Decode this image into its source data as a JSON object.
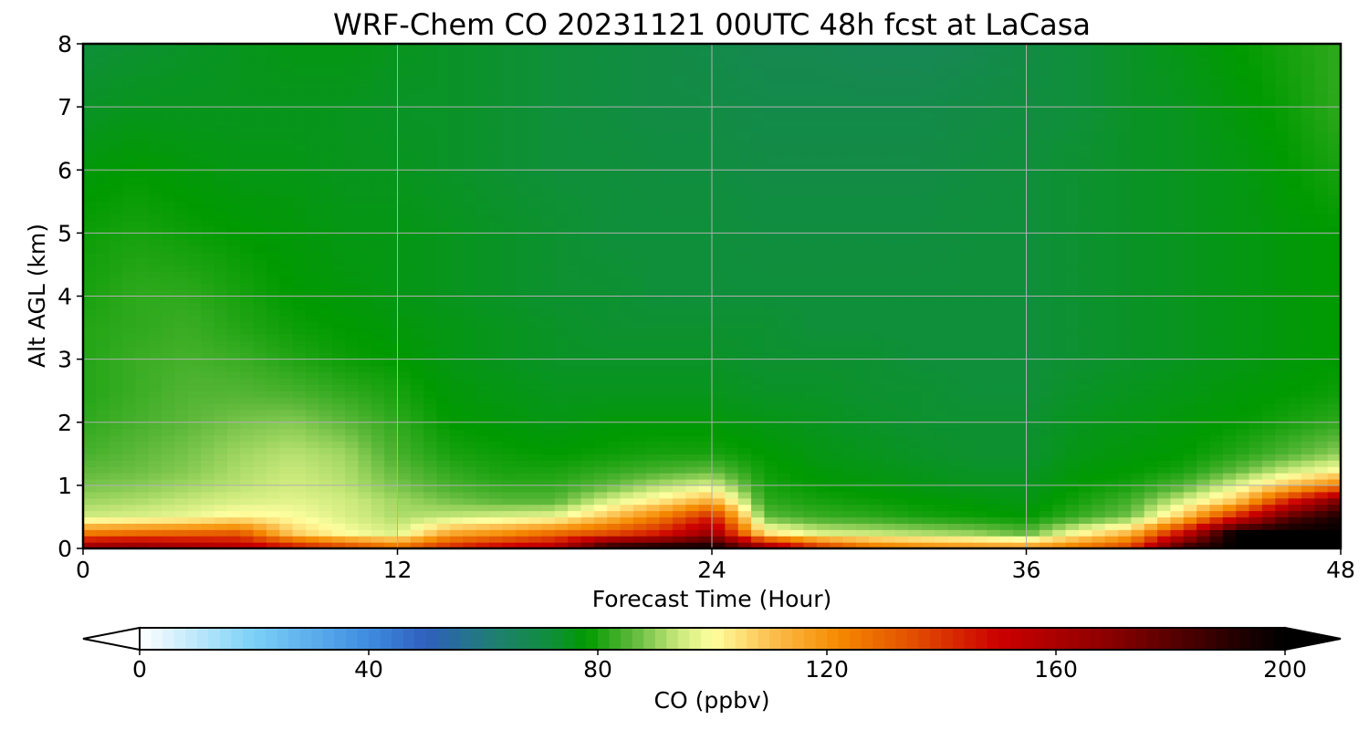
{
  "chart_data": {
    "type": "heatmap",
    "title": "WRF-Chem CO  20231121 00UTC 48h fcst at LaCasa",
    "xlabel": "Forecast Time (Hour)",
    "ylabel": "Alt AGL (km)",
    "xlim": [
      0,
      48
    ],
    "ylim": [
      0,
      8
    ],
    "xticks": [
      "0",
      "12",
      "24",
      "36",
      "48"
    ],
    "yticks": [
      "0",
      "1",
      "2",
      "3",
      "4",
      "5",
      "6",
      "7",
      "8"
    ],
    "grid": true,
    "colorbar": {
      "label": "CO  (ppbv)",
      "range": [
        0,
        200
      ],
      "ticks": [
        "0",
        "40",
        "80",
        "120",
        "160",
        "200"
      ],
      "extend": "both",
      "colors": [
        {
          "v": 0,
          "c": "#ffffff"
        },
        {
          "v": 20,
          "c": "#7ad0f7"
        },
        {
          "v": 40,
          "c": "#3e8ce0"
        },
        {
          "v": 50,
          "c": "#2f5fbe"
        },
        {
          "v": 62,
          "c": "#1f7f70"
        },
        {
          "v": 72,
          "c": "#0f8f3a"
        },
        {
          "v": 78,
          "c": "#009a00"
        },
        {
          "v": 86,
          "c": "#5db83a"
        },
        {
          "v": 94,
          "c": "#c8e87a"
        },
        {
          "v": 100,
          "c": "#ffffa0"
        },
        {
          "v": 110,
          "c": "#fcc050"
        },
        {
          "v": 122,
          "c": "#f58a00"
        },
        {
          "v": 136,
          "c": "#e04a00"
        },
        {
          "v": 150,
          "c": "#cc0000"
        },
        {
          "v": 170,
          "c": "#880000"
        },
        {
          "v": 190,
          "c": "#2a0000"
        },
        {
          "v": 200,
          "c": "#000000"
        }
      ]
    },
    "x": [
      0,
      2,
      4,
      6,
      8,
      10,
      12,
      14,
      16,
      18,
      20,
      22,
      24,
      26,
      28,
      30,
      32,
      34,
      36,
      38,
      40,
      42,
      44,
      46,
      48
    ],
    "y": [
      0,
      0.25,
      0.5,
      0.75,
      1,
      1.25,
      1.5,
      2,
      2.5,
      3,
      3.5,
      4,
      5,
      6,
      7,
      8
    ],
    "z": [
      [
        170,
        172,
        165,
        160,
        150,
        140,
        130,
        145,
        155,
        160,
        195,
        200,
        200,
        170,
        145,
        130,
        125,
        122,
        120,
        128,
        140,
        190,
        200,
        200,
        200
      ],
      [
        125,
        128,
        130,
        132,
        108,
        100,
        96,
        115,
        120,
        128,
        135,
        145,
        165,
        105,
        96,
        94,
        92,
        90,
        86,
        100,
        112,
        150,
        200,
        200,
        200
      ],
      [
        95,
        96,
        98,
        102,
        100,
        96,
        92,
        94,
        96,
        98,
        110,
        125,
        145,
        86,
        83,
        82,
        80,
        79,
        78,
        83,
        88,
        110,
        145,
        180,
        195
      ],
      [
        91,
        92,
        94,
        96,
        97,
        95,
        91,
        88,
        86,
        86,
        96,
        104,
        115,
        82,
        80,
        79,
        78,
        77,
        76,
        80,
        84,
        96,
        110,
        145,
        175
      ],
      [
        88,
        89,
        91,
        93,
        95,
        93,
        88,
        84,
        82,
        82,
        86,
        92,
        96,
        80,
        78,
        77,
        76,
        75,
        75,
        78,
        80,
        85,
        96,
        110,
        125
      ],
      [
        86,
        87,
        89,
        92,
        94,
        92,
        86,
        82,
        80,
        80,
        82,
        84,
        86,
        79,
        77,
        76,
        75,
        74,
        74,
        77,
        78,
        80,
        86,
        94,
        100
      ],
      [
        84,
        86,
        88,
        91,
        93,
        91,
        84,
        80,
        79,
        78,
        79,
        80,
        80,
        78,
        76,
        75,
        74,
        73,
        73,
        76,
        77,
        78,
        81,
        85,
        90
      ],
      [
        82,
        84,
        86,
        88,
        89,
        86,
        82,
        78,
        77,
        76,
        77,
        77,
        77,
        76,
        75,
        74,
        73,
        73,
        73,
        75,
        76,
        77,
        78,
        80,
        82
      ],
      [
        81,
        83,
        85,
        85,
        84,
        82,
        80,
        77,
        76,
        75,
        75,
        75,
        75,
        74,
        74,
        73,
        73,
        72,
        72,
        74,
        75,
        76,
        77,
        78,
        79
      ],
      [
        81,
        83,
        84,
        83,
        81,
        79,
        78,
        76,
        75,
        74,
        74,
        74,
        74,
        73,
        73,
        73,
        72,
        72,
        72,
        73,
        74,
        75,
        76,
        77,
        78
      ],
      [
        81,
        82,
        83,
        81,
        79,
        78,
        77,
        76,
        75,
        74,
        73,
        73,
        73,
        73,
        72,
        72,
        72,
        72,
        72,
        73,
        74,
        75,
        76,
        77,
        78
      ],
      [
        80,
        82,
        82,
        80,
        78,
        77,
        76,
        75,
        74,
        73,
        73,
        72,
        72,
        72,
        72,
        72,
        72,
        72,
        72,
        73,
        74,
        75,
        76,
        77,
        78
      ],
      [
        79,
        80,
        79,
        78,
        77,
        76,
        76,
        75,
        74,
        73,
        72,
        72,
        72,
        71,
        71,
        71,
        71,
        72,
        72,
        73,
        74,
        75,
        76,
        77,
        78
      ],
      [
        77,
        78,
        77,
        76,
        76,
        75,
        75,
        74,
        73,
        72,
        72,
        71,
        71,
        70,
        70,
        70,
        70,
        71,
        72,
        73,
        74,
        75,
        76,
        78,
        80
      ],
      [
        74,
        75,
        75,
        75,
        75,
        75,
        74,
        74,
        73,
        72,
        71,
        70,
        70,
        69,
        69,
        69,
        69,
        70,
        71,
        72,
        74,
        75,
        77,
        79,
        82
      ],
      [
        72,
        73,
        74,
        75,
        76,
        76,
        75,
        74,
        73,
        72,
        71,
        70,
        69,
        68,
        68,
        67,
        67,
        68,
        70,
        72,
        74,
        76,
        78,
        80,
        82
      ]
    ]
  }
}
